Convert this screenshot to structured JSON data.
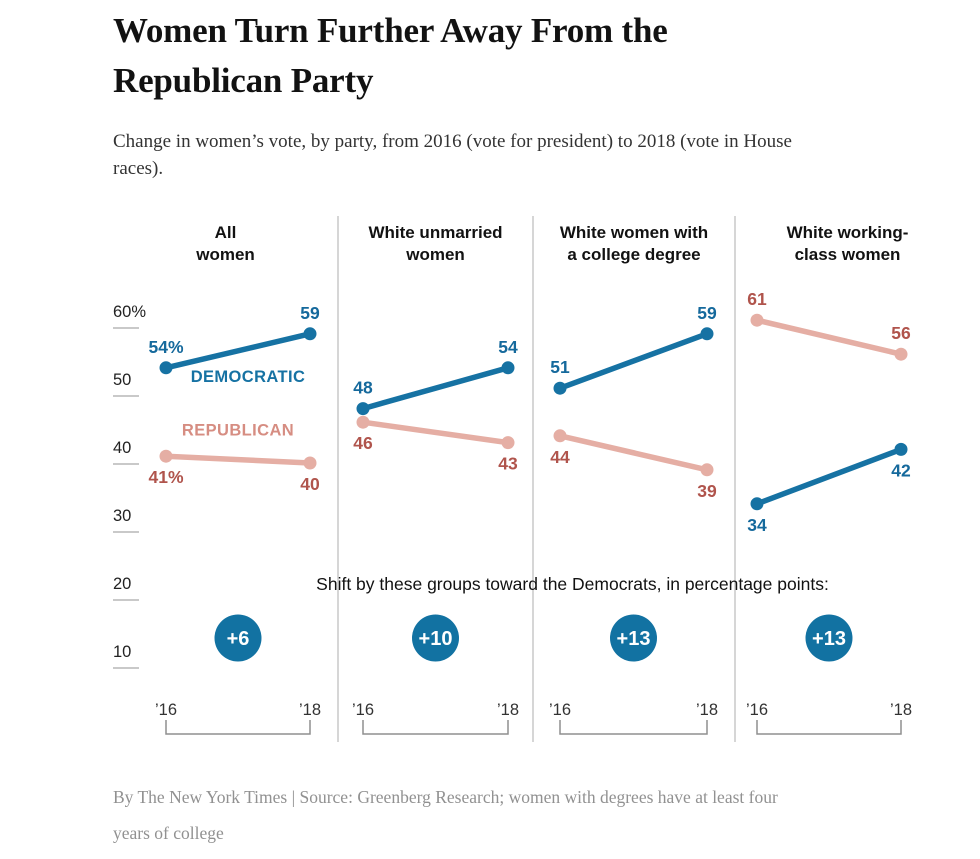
{
  "header": {
    "title_line1": "Women Turn Further Away From the",
    "title_line2": "Republican Party",
    "subtitle_line1": "Change in women’s vote, by party, from 2016 (vote for president) to 2018 (vote in House",
    "subtitle_line2": "races)."
  },
  "chart_data": {
    "type": "line",
    "x_tick_labels": [
      "’16",
      "’18"
    ],
    "x_years": [
      2016,
      2018
    ],
    "y_tick_labels": [
      "60%",
      "50",
      "40",
      "30",
      "20",
      "10"
    ],
    "y_tick_values": [
      60,
      50,
      40,
      30,
      20,
      10
    ],
    "ylim": [
      5,
      63
    ],
    "grid": false,
    "legend": {
      "democratic": "DEMOCRATIC",
      "republican": "REPUBLICAN"
    },
    "colors": {
      "democratic": "#1672a3",
      "democratic_text": "#15699c",
      "republican_line": "#e5aea4",
      "republican_text": "#b0544c",
      "republican_legend": "#d68d82",
      "badge_fill": "#1272a2",
      "badge_text": "#ffffff"
    },
    "shift_note": "Shift by these groups toward the Democrats, in percentage points:",
    "panels": [
      {
        "title_lines": [
          "All",
          "women"
        ],
        "democratic": {
          "values": [
            54,
            59
          ],
          "labels": [
            "54%",
            "59"
          ],
          "label_side": "above"
        },
        "republican": {
          "values": [
            41,
            40
          ],
          "labels": [
            "41%",
            "40"
          ],
          "label_side": "below"
        },
        "show_legend": true,
        "shift": "+6"
      },
      {
        "title_lines": [
          "White unmarried",
          "women"
        ],
        "democratic": {
          "values": [
            48,
            54
          ],
          "labels": [
            "48",
            "54"
          ],
          "label_side": "above"
        },
        "republican": {
          "values": [
            46,
            43
          ],
          "labels": [
            "46",
            "43"
          ],
          "label_side": "below"
        },
        "show_legend": false,
        "shift": "+10"
      },
      {
        "title_lines": [
          "White women with",
          "a college degree"
        ],
        "democratic": {
          "values": [
            51,
            59
          ],
          "labels": [
            "51",
            "59"
          ],
          "label_side": "above"
        },
        "republican": {
          "values": [
            44,
            39
          ],
          "labels": [
            "44",
            "39"
          ],
          "label_side": "below"
        },
        "show_legend": false,
        "shift": "+13"
      },
      {
        "title_lines": [
          "White working-",
          "class women"
        ],
        "democratic": {
          "values": [
            34,
            42
          ],
          "labels": [
            "34",
            "42"
          ],
          "label_side": "below"
        },
        "republican": {
          "values": [
            61,
            56
          ],
          "labels": [
            "61",
            "56"
          ],
          "label_side": "above"
        },
        "show_legend": false,
        "shift": "+13"
      }
    ]
  },
  "footer": {
    "line1": "By The New York Times | Source: Greenberg Research; women with degrees have at least four",
    "line2": "years of college"
  }
}
